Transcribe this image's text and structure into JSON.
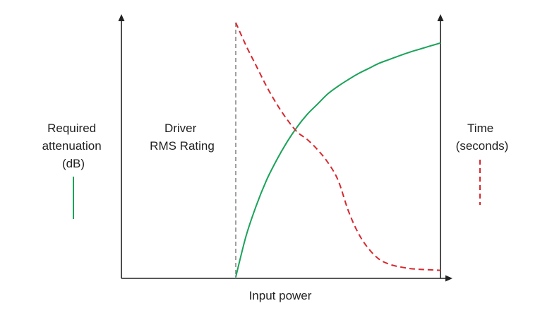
{
  "chart_data": {
    "type": "line",
    "title": "",
    "xlabel": "Input power",
    "ylabel_left": [
      "Required",
      "attenuation",
      "(dB)"
    ],
    "ylabel_right": [
      "Time",
      "(seconds)"
    ],
    "annotation": [
      "Driver",
      "RMS Rating"
    ],
    "grid": false,
    "axes_numeric_ticks": false,
    "series": [
      {
        "name": "Required attenuation (dB)",
        "axis": "left",
        "style": "solid",
        "color": "#1aa35a",
        "x": [
          0,
          5,
          10,
          15,
          20,
          25,
          30,
          35,
          40,
          45,
          50,
          55,
          60,
          65,
          70,
          75,
          80,
          85,
          90,
          95,
          100
        ],
        "y": [
          0,
          16,
          28,
          38,
          46,
          53,
          59,
          64,
          68,
          72,
          75,
          77.6,
          80,
          82,
          84,
          85.5,
          87,
          88.4,
          89.6,
          90.8,
          92
        ]
      },
      {
        "name": "Time (seconds)",
        "axis": "right",
        "style": "dashed",
        "color": "#d7282f",
        "x": [
          0,
          5,
          10,
          15,
          20,
          25,
          30,
          35,
          40,
          45,
          50,
          55,
          60,
          65,
          70,
          75,
          80,
          85,
          90,
          95,
          100
        ],
        "y": [
          100,
          91,
          83,
          75,
          68,
          62,
          57,
          54,
          50,
          45,
          38,
          26,
          17,
          11,
          7,
          5,
          4,
          3.3,
          3,
          2.8,
          2.6
        ]
      }
    ],
    "colors": {
      "axis": "#222222",
      "rating_line": "#888888",
      "attenuation": "#1aa35a",
      "time": "#d7282f"
    }
  }
}
